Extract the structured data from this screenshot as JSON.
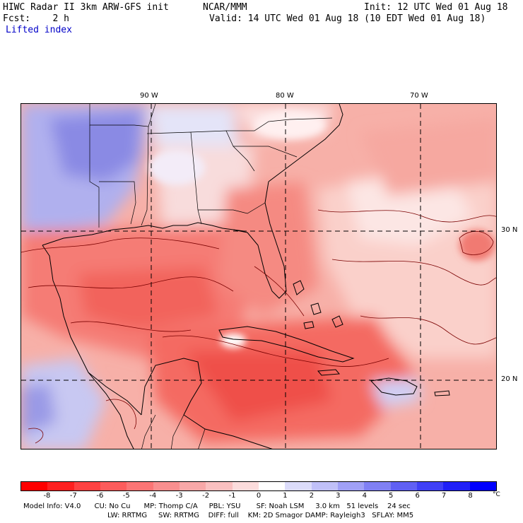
{
  "header": {
    "model_title": "HIWC Radar II 3km ARW-GFS init",
    "org": "NCAR/MMM",
    "init": "Init: 12 UTC Wed 01 Aug 18",
    "fcst": "Fcst:    2 h",
    "valid": "Valid: 14 UTC Wed 01 Aug 18 (10 EDT Wed 01 Aug 18)",
    "field": "Lifted index"
  },
  "map": {
    "lon_labels": [
      "90 W",
      "80 W",
      "70 W"
    ],
    "lat_labels": [
      "30 N",
      "20 N"
    ]
  },
  "colorbar": {
    "ticks": [
      "-8",
      "-7",
      "-6",
      "-5",
      "-4",
      "-3",
      "-2",
      "-1",
      "0",
      "1",
      "2",
      "3",
      "4",
      "5",
      "6",
      "7",
      "8"
    ],
    "unit": "°C",
    "colors": [
      "#ff0000",
      "#ff2020",
      "#ff4242",
      "#fd5c5c",
      "#fb7575",
      "#f98f8f",
      "#f8a8a8",
      "#fac0c0",
      "#fcdcdc",
      "#ffffff",
      "#dcdcfa",
      "#c0c0f8",
      "#a0a0f6",
      "#8080f4",
      "#6060f4",
      "#4040f6",
      "#2020f8",
      "#0000ff"
    ]
  },
  "footer": {
    "line1": "Model Info: V4.0      CU: No Cu      MP: Thomp C/A     PBL: YSU       SF: Noah LSM     3.0 km   51 levels    24 sec",
    "line2": "LW: RRTMG     SW: RRTMG    DIFF: full    KM: 2D Smagor DAMP: Rayleigh3   SFLAY: MM5"
  }
}
